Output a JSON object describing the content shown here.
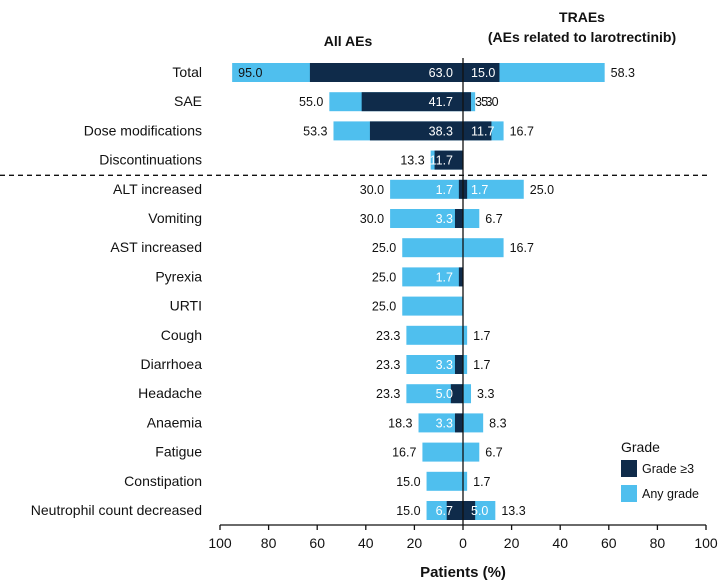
{
  "chart_data": {
    "type": "bar",
    "orientation": "horizontal-butterfly",
    "headers": {
      "left": "All AEs",
      "right_line1": "TRAEs",
      "right_line2": "(AEs related to larotrectinib)"
    },
    "xlabel": "Patients (%)",
    "xlim": [
      -100,
      100
    ],
    "x_ticks": [
      "100",
      "80",
      "60",
      "40",
      "20",
      "0",
      "20",
      "40",
      "60",
      "80",
      "100"
    ],
    "legend": {
      "title": "Grade",
      "items": [
        {
          "label": "Grade ≥3",
          "color": "#0f2b4a"
        },
        {
          "label": "Any grade",
          "color": "#4fbfee"
        }
      ],
      "position": "bottom-right"
    },
    "colors": {
      "grade3": "#0f2b4a",
      "any": "#4fbfee",
      "axis": "#111111"
    },
    "separator_after_index": 3,
    "categories": [
      {
        "label": "Total",
        "all_any": 95.0,
        "all_any_label": "95.0",
        "all_g3": 63.0,
        "all_g3_label": "63.0",
        "tr_any": 58.3,
        "tr_any_label": "58.3",
        "tr_g3": 15.0,
        "tr_g3_label": "15.0"
      },
      {
        "label": "SAE",
        "all_any": 55.0,
        "all_any_label": "55.0",
        "all_g3": 41.7,
        "all_g3_label": "41.7",
        "tr_any": 5.0,
        "tr_any_label": "5.0",
        "tr_g3": 3.3,
        "tr_g3_label": "3.3"
      },
      {
        "label": "Dose modifications",
        "all_any": 53.3,
        "all_any_label": "53.3",
        "all_g3": 38.3,
        "all_g3_label": "38.3",
        "tr_any": 16.7,
        "tr_any_label": "16.7",
        "tr_g3": 11.7,
        "tr_g3_label": "11.7"
      },
      {
        "label": "Discontinuations",
        "all_any": 13.3,
        "all_any_label": "13.3",
        "all_g3": 11.7,
        "all_g3_label": "11.7",
        "tr_any": 0,
        "tr_any_label": "",
        "tr_g3": 0,
        "tr_g3_label": ""
      },
      {
        "label": "ALT increased",
        "all_any": 30.0,
        "all_any_label": "30.0",
        "all_g3": 1.7,
        "all_g3_label": "1.7",
        "tr_any": 25.0,
        "tr_any_label": "25.0",
        "tr_g3": 1.7,
        "tr_g3_label": "1.7"
      },
      {
        "label": "Vomiting",
        "all_any": 30.0,
        "all_any_label": "30.0",
        "all_g3": 3.3,
        "all_g3_label": "3.3",
        "tr_any": 6.7,
        "tr_any_label": "6.7",
        "tr_g3": 0,
        "tr_g3_label": ""
      },
      {
        "label": "AST increased",
        "all_any": 25.0,
        "all_any_label": "25.0",
        "all_g3": 0,
        "all_g3_label": "",
        "tr_any": 16.7,
        "tr_any_label": "16.7",
        "tr_g3": 0,
        "tr_g3_label": ""
      },
      {
        "label": "Pyrexia",
        "all_any": 25.0,
        "all_any_label": "25.0",
        "all_g3": 1.7,
        "all_g3_label": "1.7",
        "tr_any": 0,
        "tr_any_label": "",
        "tr_g3": 0,
        "tr_g3_label": ""
      },
      {
        "label": "URTI",
        "all_any": 25.0,
        "all_any_label": "25.0",
        "all_g3": 0,
        "all_g3_label": "",
        "tr_any": 0,
        "tr_any_label": "",
        "tr_g3": 0,
        "tr_g3_label": ""
      },
      {
        "label": "Cough",
        "all_any": 23.3,
        "all_any_label": "23.3",
        "all_g3": 0,
        "all_g3_label": "",
        "tr_any": 1.7,
        "tr_any_label": "1.7",
        "tr_g3": 0,
        "tr_g3_label": ""
      },
      {
        "label": "Diarrhoea",
        "all_any": 23.3,
        "all_any_label": "23.3",
        "all_g3": 3.3,
        "all_g3_label": "3.3",
        "tr_any": 1.7,
        "tr_any_label": "1.7",
        "tr_g3": 0,
        "tr_g3_label": ""
      },
      {
        "label": "Headache",
        "all_any": 23.3,
        "all_any_label": "23.3",
        "all_g3": 5.0,
        "all_g3_label": "5.0",
        "tr_any": 3.3,
        "tr_any_label": "3.3",
        "tr_g3": 0,
        "tr_g3_label": ""
      },
      {
        "label": "Anaemia",
        "all_any": 18.3,
        "all_any_label": "18.3",
        "all_g3": 3.3,
        "all_g3_label": "3.3",
        "tr_any": 8.3,
        "tr_any_label": "8.3",
        "tr_g3": 0,
        "tr_g3_label": ""
      },
      {
        "label": "Fatigue",
        "all_any": 16.7,
        "all_any_label": "16.7",
        "all_g3": 0,
        "all_g3_label": "",
        "tr_any": 6.7,
        "tr_any_label": "6.7",
        "tr_g3": 0,
        "tr_g3_label": ""
      },
      {
        "label": "Constipation",
        "all_any": 15.0,
        "all_any_label": "15.0",
        "all_g3": 0,
        "all_g3_label": "",
        "tr_any": 1.7,
        "tr_any_label": "1.7",
        "tr_g3": 0,
        "tr_g3_label": ""
      },
      {
        "label": "Neutrophil count decreased",
        "all_any": 15.0,
        "all_any_label": "15.0",
        "all_g3": 6.7,
        "all_g3_label": "6.7",
        "tr_any": 13.3,
        "tr_any_label": "13.3",
        "tr_g3": 5.0,
        "tr_g3_label": "5.0"
      }
    ]
  }
}
